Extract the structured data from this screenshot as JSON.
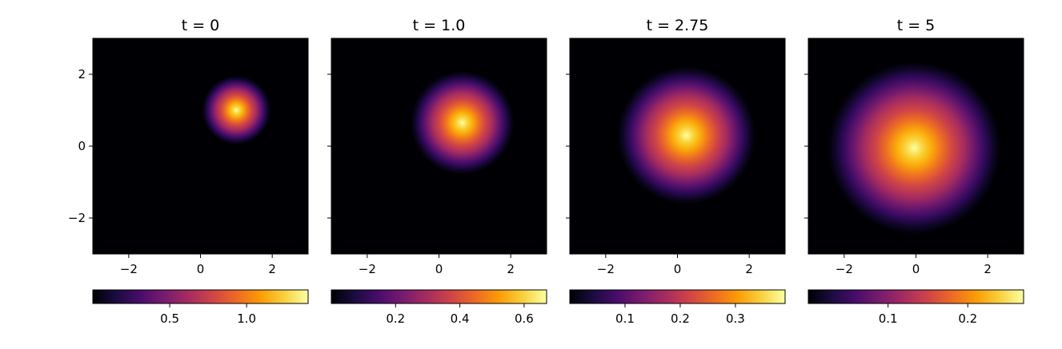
{
  "chart_data": [
    {
      "type": "heatmap",
      "title": "t = 0",
      "xlim": [
        -3,
        3
      ],
      "ylim": [
        -3,
        3
      ],
      "xticks": [
        -2,
        0,
        2
      ],
      "yticks": [
        -2,
        0,
        2
      ],
      "xtick_labels": [
        "−2",
        "0",
        "2"
      ],
      "ytick_labels": [
        "−2",
        "0",
        "2"
      ],
      "show_ytick_labels": true,
      "colormap": "inferno",
      "peak": {
        "x": 1.0,
        "y": 1.0
      },
      "spread": 0.3,
      "colorbar": {
        "orientation": "horizontal",
        "range": [
          0.0,
          1.4
        ],
        "ticks": [
          0.5,
          1.0
        ],
        "tick_labels": [
          "0.5",
          "1.0"
        ]
      }
    },
    {
      "type": "heatmap",
      "title": "t = 1.0",
      "xlim": [
        -3,
        3
      ],
      "ylim": [
        -3,
        3
      ],
      "xticks": [
        -2,
        0,
        2
      ],
      "yticks": [
        -2,
        0,
        2
      ],
      "xtick_labels": [
        "−2",
        "0",
        "2"
      ],
      "ytick_labels": [
        "−2",
        "0",
        "2"
      ],
      "show_ytick_labels": false,
      "colormap": "inferno",
      "peak": {
        "x": 0.65,
        "y": 0.65
      },
      "spread": 0.45,
      "colorbar": {
        "orientation": "horizontal",
        "range": [
          0.0,
          0.67
        ],
        "ticks": [
          0.2,
          0.4,
          0.6
        ],
        "tick_labels": [
          "0.2",
          "0.4",
          "0.6"
        ]
      }
    },
    {
      "type": "heatmap",
      "title": "t = 2.75",
      "xlim": [
        -3,
        3
      ],
      "ylim": [
        -3,
        3
      ],
      "xticks": [
        -2,
        0,
        2
      ],
      "yticks": [
        -2,
        0,
        2
      ],
      "xtick_labels": [
        "−2",
        "0",
        "2"
      ],
      "ytick_labels": [
        "−2",
        "0",
        "2"
      ],
      "show_ytick_labels": false,
      "colormap": "inferno",
      "peak": {
        "x": 0.25,
        "y": 0.3
      },
      "spread": 0.6,
      "colorbar": {
        "orientation": "horizontal",
        "range": [
          0.0,
          0.39
        ],
        "ticks": [
          0.1,
          0.2,
          0.3
        ],
        "tick_labels": [
          "0.1",
          "0.2",
          "0.3"
        ]
      }
    },
    {
      "type": "heatmap",
      "title": "t = 5",
      "xlim": [
        -3,
        3
      ],
      "ylim": [
        -3,
        3
      ],
      "xticks": [
        -2,
        0,
        2
      ],
      "yticks": [
        -2,
        0,
        2
      ],
      "xtick_labels": [
        "−2",
        "0",
        "2"
      ],
      "ytick_labels": [
        "−2",
        "0",
        "2"
      ],
      "show_ytick_labels": false,
      "colormap": "inferno",
      "peak": {
        "x": -0.05,
        "y": -0.05
      },
      "spread": 0.75,
      "colorbar": {
        "orientation": "horizontal",
        "range": [
          0.0,
          0.27
        ],
        "ticks": [
          0.1,
          0.2
        ],
        "tick_labels": [
          "0.1",
          "0.2"
        ]
      }
    }
  ],
  "colors": {
    "inferno": [
      "#000004",
      "#1b0c41",
      "#4a0c6b",
      "#781c6d",
      "#a52c60",
      "#cf4446",
      "#ed6925",
      "#fb9b06",
      "#f7d13d",
      "#fcffa4"
    ]
  }
}
